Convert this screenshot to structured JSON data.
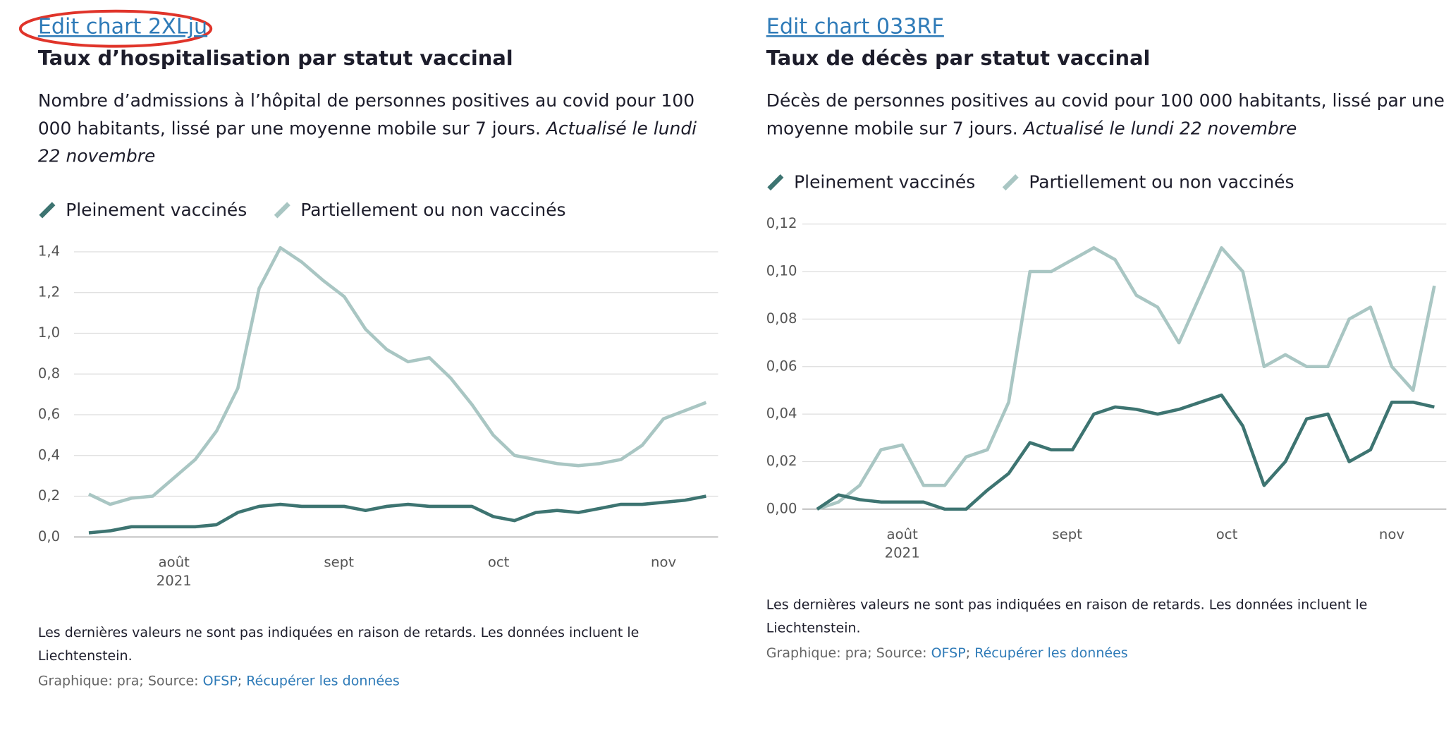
{
  "chart_data": [
    {
      "type": "line",
      "edit_link": "Edit chart 2XLju",
      "title": "Taux d’hospitalisation par statut vaccinal",
      "description": "Nombre d’admissions à l’hôpital de personnes positives au covid pour 100 000 habitants, lissé par une moyenne mobile sur 7 jours.",
      "updated": "Actualisé le lundi 22 novembre",
      "series": [
        {
          "name": "Pleinement vaccinés",
          "color": "#3d7471",
          "values": [
            0.02,
            0.03,
            0.05,
            0.05,
            0.05,
            0.05,
            0.06,
            0.12,
            0.15,
            0.16,
            0.15,
            0.15,
            0.15,
            0.13,
            0.15,
            0.16,
            0.15,
            0.15,
            0.15,
            0.1,
            0.08,
            0.12,
            0.13,
            0.12,
            0.14,
            0.16,
            0.16,
            0.17,
            0.18,
            0.2
          ]
        },
        {
          "name": "Partiellement ou non vaccinés",
          "color": "#a9c6c3",
          "values": [
            0.21,
            0.16,
            0.19,
            0.2,
            0.29,
            0.38,
            0.52,
            0.73,
            1.22,
            1.42,
            1.35,
            1.26,
            1.18,
            1.02,
            0.92,
            0.86,
            0.88,
            0.78,
            0.65,
            0.5,
            0.4,
            0.38,
            0.36,
            0.35,
            0.36,
            0.38,
            0.45,
            0.58,
            0.62,
            0.66
          ]
        }
      ],
      "xlim": [
        0,
        29
      ],
      "xticks": [
        {
          "value": 4,
          "label": "août"
        },
        {
          "value": 11.75,
          "label": "sept"
        },
        {
          "value": 19.25,
          "label": "oct"
        },
        {
          "value": 27,
          "label": "nov"
        }
      ],
      "year_label": "2021",
      "ylim": [
        0,
        1.4
      ],
      "yticks": [
        {
          "value": 0,
          "label": "0,0"
        },
        {
          "value": 0.2,
          "label": "0,2"
        },
        {
          "value": 0.4,
          "label": "0,4"
        },
        {
          "value": 0.6,
          "label": "0,6"
        },
        {
          "value": 0.8,
          "label": "0,8"
        },
        {
          "value": 1.0,
          "label": "1,0"
        },
        {
          "value": 1.2,
          "label": "1,2"
        },
        {
          "value": 1.4,
          "label": "1,4"
        }
      ],
      "grid": true,
      "note": "Les dernières valeurs ne sont pas indiquées en raison de retards. Les données incluent le Liechtenstein.",
      "source_prefix": "Graphique: pra; Source:",
      "source_link": "OFSP",
      "source_separator": ";",
      "data_link": "Récupérer les données"
    },
    {
      "type": "line",
      "edit_link": "Edit chart 033RF",
      "title": "Taux de décès par statut vaccinal",
      "description": "Décès de personnes positives au covid pour 100 000 habitants, lissé par une moyenne mobile sur 7 jours.",
      "updated": "Actualisé le lundi 22 novembre",
      "series": [
        {
          "name": "Pleinement vaccinés",
          "color": "#3d7471",
          "values": [
            0,
            0.006,
            0.004,
            0.003,
            0.003,
            0.003,
            0,
            0,
            0.008,
            0.015,
            0.028,
            0.025,
            0.025,
            0.04,
            0.043,
            0.042,
            0.04,
            0.042,
            0.045,
            0.048,
            0.035,
            0.01,
            0.02,
            0.038,
            0.04,
            0.02,
            0.025,
            0.045,
            0.045,
            0.043
          ]
        },
        {
          "name": "Partiellement ou non vaccinés",
          "color": "#a9c6c3",
          "values": [
            0,
            0.003,
            0.01,
            0.025,
            0.027,
            0.01,
            0.01,
            0.022,
            0.025,
            0.045,
            0.1,
            0.1,
            0.105,
            0.11,
            0.105,
            0.09,
            0.085,
            0.07,
            0.09,
            0.11,
            0.1,
            0.06,
            0.065,
            0.06,
            0.06,
            0.08,
            0.085,
            0.06,
            0.05,
            0.094
          ]
        }
      ],
      "xlim": [
        0,
        29
      ],
      "xticks": [
        {
          "value": 4,
          "label": "août"
        },
        {
          "value": 11.75,
          "label": "sept"
        },
        {
          "value": 19.25,
          "label": "oct"
        },
        {
          "value": 27,
          "label": "nov"
        }
      ],
      "year_label": "2021",
      "ylim": [
        0,
        0.12
      ],
      "yticks": [
        {
          "value": 0,
          "label": "0,00"
        },
        {
          "value": 0.02,
          "label": "0,02"
        },
        {
          "value": 0.04,
          "label": "0,04"
        },
        {
          "value": 0.06,
          "label": "0,06"
        },
        {
          "value": 0.08,
          "label": "0,08"
        },
        {
          "value": 0.1,
          "label": "0,10"
        },
        {
          "value": 0.12,
          "label": "0,12"
        }
      ],
      "grid": true,
      "note": "Les dernières valeurs ne sont pas indiquées en raison de retards. Les données incluent le Liechtenstein.",
      "source_prefix": "Graphique: pra; Source:",
      "source_link": "OFSP",
      "source_separator": ";",
      "data_link": "Récupérer les données"
    }
  ]
}
